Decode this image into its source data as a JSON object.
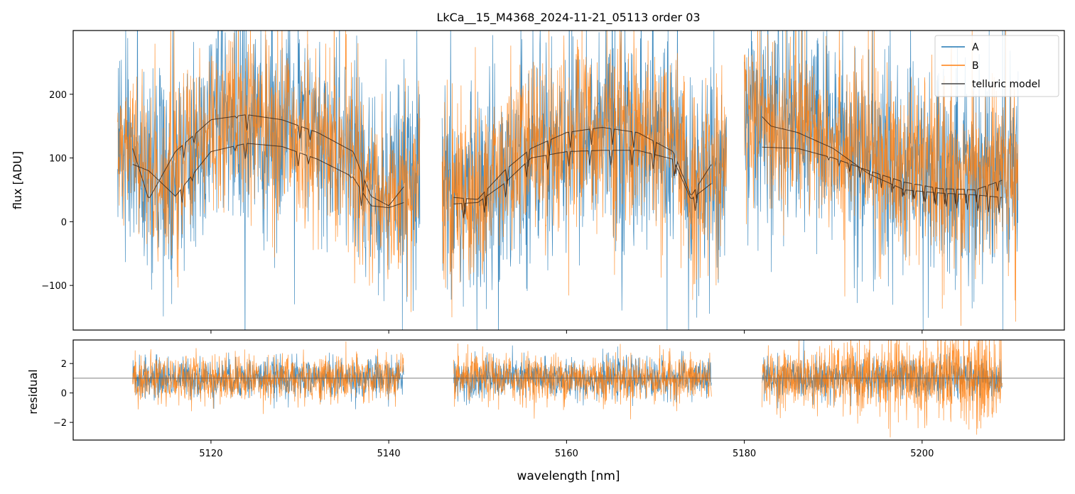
{
  "chart_data": [
    {
      "type": "line",
      "title": "LkCa__15_M4368_2024-11-21_05113  order 03",
      "xlabel": "",
      "ylabel": "flux [ADU]",
      "xlim": [
        5104.5,
        5216.0
      ],
      "ylim": [
        -170,
        300
      ],
      "yticks": [
        -100,
        0,
        100,
        200
      ],
      "ytick_labels": [
        "−100",
        "0",
        "100",
        "200"
      ],
      "xticks": [
        5120,
        5140,
        5160,
        5180,
        5200
      ],
      "legend": {
        "placement": "top-right",
        "entries": [
          {
            "label": "A",
            "color": "#1f77b4"
          },
          {
            "label": "B",
            "color": "#ff7f0e"
          },
          {
            "label": "telluric model",
            "color": "#444444"
          }
        ]
      },
      "segments": [
        {
          "x_range": [
            5109.5,
            5143.5
          ]
        },
        {
          "x_range": [
            5146.0,
            5178.0
          ]
        },
        {
          "x_range": [
            5180.0,
            5210.8
          ]
        }
      ],
      "series": [
        {
          "name": "A",
          "color": "#1f77b4",
          "noise_amplitude": 85,
          "note_mean": "follows telluric model"
        },
        {
          "name": "B",
          "color": "#ff7f0e",
          "noise_amplitude": 70,
          "note_mean": "follows telluric model"
        },
        {
          "name": "telluric model",
          "color": "#3a2414",
          "curves": [
            {
              "segment": 0,
              "x": [
                5111.2,
                5113,
                5116,
                5120,
                5124,
                5128,
                5132,
                5136,
                5138,
                5140,
                5141.7
              ],
              "y": [
                115,
                35,
                110,
                160,
                168,
                160,
                140,
                110,
                40,
                25,
                55
              ]
            },
            {
              "segment": 0,
              "x": [
                5111.2,
                5113,
                5116,
                5120,
                5124,
                5128,
                5132,
                5136,
                5138,
                5140,
                5141.7
              ],
              "y": [
                90,
                80,
                40,
                110,
                123,
                118,
                98,
                70,
                25,
                22,
                30
              ]
            },
            {
              "segment": 1,
              "x": [
                5147.3,
                5150,
                5153,
                5156,
                5160,
                5164,
                5168,
                5172,
                5174,
                5176.3
              ],
              "y": [
                38,
                35,
                80,
                115,
                140,
                148,
                140,
                110,
                40,
                90
              ]
            },
            {
              "segment": 1,
              "x": [
                5147.3,
                5150,
                5153,
                5156,
                5160,
                5164,
                5168,
                5172,
                5174,
                5176.3
              ],
              "y": [
                28,
                30,
                60,
                100,
                110,
                112,
                112,
                98,
                35,
                60
              ]
            },
            {
              "segment": 2,
              "x": [
                5182.0,
                5183,
                5186,
                5190,
                5194,
                5198,
                5202,
                5206,
                5209.0
              ],
              "y": [
                165,
                150,
                140,
                115,
                75,
                50,
                45,
                42,
                38
              ]
            },
            {
              "segment": 2,
              "x": [
                5182.0,
                5186,
                5190,
                5194,
                5198,
                5202,
                5206,
                5209.0
              ],
              "y": [
                117,
                115,
                100,
                80,
                62,
                52,
                50,
                65
              ]
            }
          ]
        }
      ]
    },
    {
      "type": "line",
      "title": "",
      "xlabel": "wavelength [nm]",
      "ylabel": "residual",
      "xlim": [
        5104.5,
        5216.0
      ],
      "ylim": [
        -3.2,
        3.6
      ],
      "yticks": [
        -2,
        0,
        2
      ],
      "ytick_labels": [
        "−2",
        "0",
        "2"
      ],
      "xticks": [
        5120,
        5140,
        5160,
        5180,
        5200
      ],
      "xtick_labels": [
        "5120",
        "5140",
        "5160",
        "5180",
        "5200"
      ],
      "reference_line_y": 1,
      "segments": [
        {
          "x_range": [
            5111.2,
            5141.7
          ]
        },
        {
          "x_range": [
            5147.3,
            5176.3
          ]
        },
        {
          "x_range": [
            5182.0,
            5209.0
          ]
        }
      ],
      "series": [
        {
          "name": "A",
          "color": "#1f77b4",
          "center": 1,
          "noise_amplitude": 0.9
        },
        {
          "name": "B",
          "color": "#ff7f0e",
          "center": 1,
          "noise_amplitude": 1.1
        }
      ]
    }
  ]
}
